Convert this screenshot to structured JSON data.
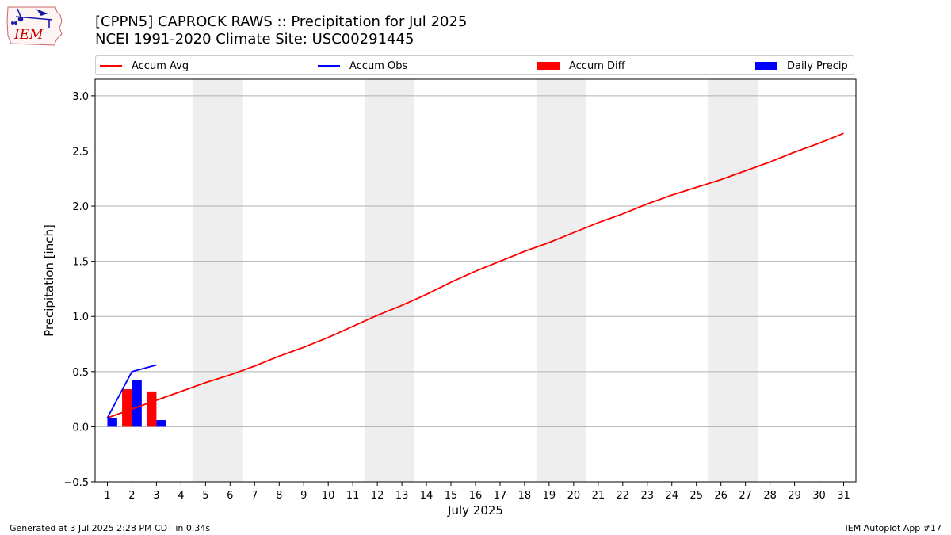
{
  "title": {
    "line1": "[CPPN5] CAPROCK RAWS :: Precipitation for Jul 2025",
    "line2": "NCEI 1991-2020 Climate Site: USC00291445"
  },
  "logo": {
    "text": "IEM",
    "color": "#cc0000"
  },
  "legend": {
    "placement": "top",
    "items": [
      {
        "label": "Accum Avg",
        "kind": "line",
        "color": "#ff0000"
      },
      {
        "label": "Accum Obs",
        "kind": "line",
        "color": "#0000ff"
      },
      {
        "label": "Accum Diff",
        "kind": "bar",
        "color": "#ff0000"
      },
      {
        "label": "Daily Precip",
        "kind": "bar",
        "color": "#0000ff"
      }
    ]
  },
  "footer": {
    "left": "Generated at 3 Jul 2025 2:28 PM CDT in 0.34s",
    "right": "IEM Autoplot App #17"
  },
  "chart_data": {
    "type": "line",
    "xlabel": "July 2025",
    "ylabel": "Precipitation [inch]",
    "xlim": [
      0.5,
      31.5
    ],
    "ylim": [
      -0.5,
      3.15
    ],
    "grid": "y",
    "x": [
      1,
      2,
      3,
      4,
      5,
      6,
      7,
      8,
      9,
      10,
      11,
      12,
      13,
      14,
      15,
      16,
      17,
      18,
      19,
      20,
      21,
      22,
      23,
      24,
      25,
      26,
      27,
      28,
      29,
      30,
      31
    ],
    "x_tick_labels": [
      "1",
      "2",
      "3",
      "4",
      "5",
      "6",
      "7",
      "8",
      "9",
      "10",
      "11",
      "12",
      "13",
      "14",
      "15",
      "16",
      "17",
      "18",
      "19",
      "20",
      "21",
      "22",
      "23",
      "24",
      "25",
      "26",
      "27",
      "28",
      "29",
      "30",
      "31"
    ],
    "y_ticks": [
      -0.5,
      0.0,
      0.5,
      1.0,
      1.5,
      2.0,
      2.5,
      3.0
    ],
    "y_tick_labels": [
      "−0.5",
      "0.0",
      "0.5",
      "1.0",
      "1.5",
      "2.0",
      "2.5",
      "3.0"
    ],
    "weekend_bands": [
      [
        4.5,
        6.5
      ],
      [
        11.5,
        13.5
      ],
      [
        18.5,
        20.5
      ],
      [
        25.5,
        27.5
      ]
    ],
    "weekend_color": "#eeeeee",
    "series": [
      {
        "name": "Accum Avg",
        "type": "line",
        "color": "#ff0000",
        "x": [
          1,
          2,
          3,
          4,
          5,
          6,
          7,
          8,
          9,
          10,
          11,
          12,
          13,
          14,
          15,
          16,
          17,
          18,
          19,
          20,
          21,
          22,
          23,
          24,
          25,
          26,
          27,
          28,
          29,
          30,
          31
        ],
        "values": [
          0.08,
          0.16,
          0.24,
          0.32,
          0.4,
          0.47,
          0.55,
          0.64,
          0.72,
          0.81,
          0.91,
          1.01,
          1.1,
          1.2,
          1.31,
          1.41,
          1.5,
          1.59,
          1.67,
          1.76,
          1.85,
          1.93,
          2.02,
          2.1,
          2.17,
          2.24,
          2.32,
          2.4,
          2.49,
          2.57,
          2.66
        ]
      },
      {
        "name": "Accum Obs",
        "type": "line",
        "color": "#0000ff",
        "x": [
          1,
          2,
          3
        ],
        "values": [
          0.08,
          0.5,
          0.56
        ]
      },
      {
        "name": "Accum Diff",
        "type": "bar",
        "color": "#ff0000",
        "x": [
          1,
          2,
          3
        ],
        "values": [
          0.0,
          0.34,
          0.32
        ]
      },
      {
        "name": "Daily Precip",
        "type": "bar",
        "color": "#0000ff",
        "x": [
          1,
          2,
          3
        ],
        "values": [
          0.08,
          0.42,
          0.06
        ]
      }
    ]
  }
}
